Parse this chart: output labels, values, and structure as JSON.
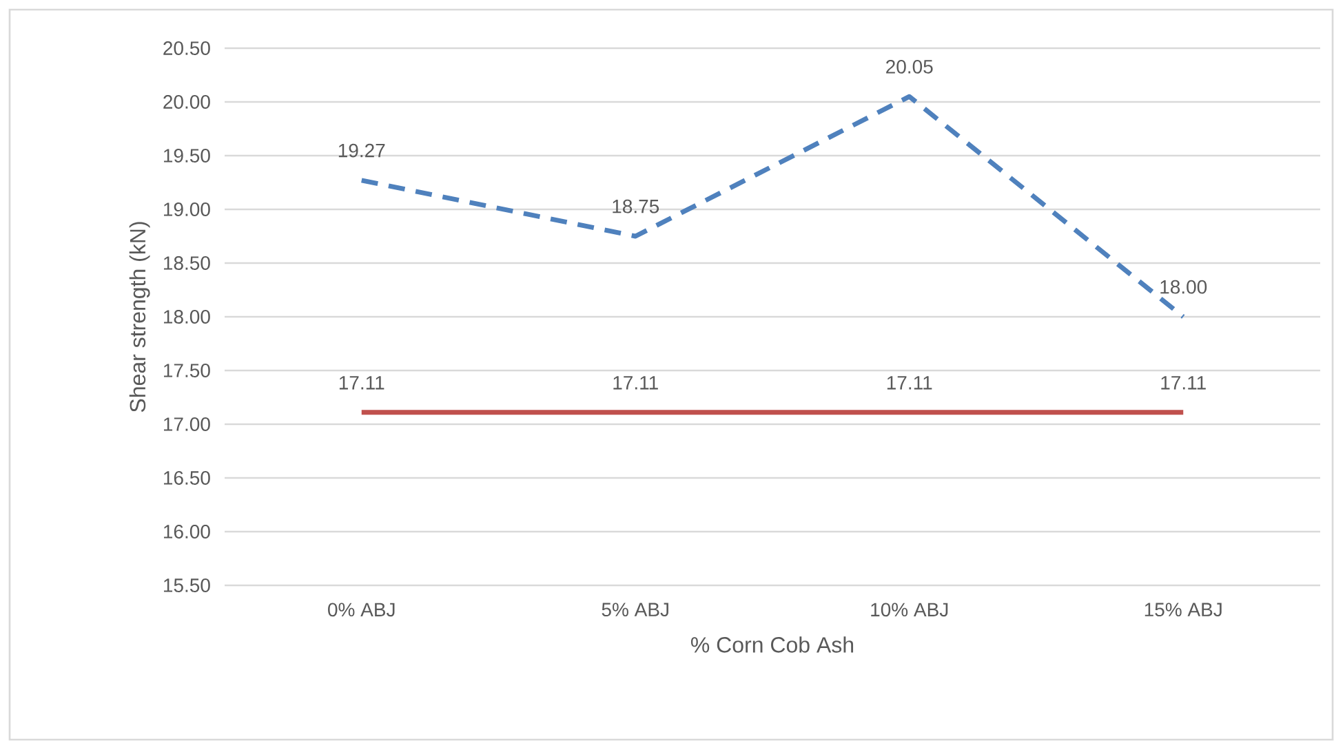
{
  "chart_data": {
    "type": "line",
    "xlabel": "% Corn Cob Ash",
    "ylabel": "Shear strength (kN)",
    "categories": [
      "0% ABJ",
      "5% ABJ",
      "10% ABJ",
      "15% ABJ"
    ],
    "series": [
      {
        "color": "#4f81bd",
        "line_style": "dashed",
        "values": [
          19.27,
          18.75,
          20.05,
          18.0
        ],
        "value_labels": [
          "19.27",
          "18.75",
          "20.05",
          "18.00"
        ]
      },
      {
        "color": "#c0504d",
        "line_style": "solid",
        "values": [
          17.11,
          17.11,
          17.11,
          17.11
        ],
        "value_labels": [
          "17.11",
          "17.11",
          "17.11",
          "17.11"
        ]
      }
    ],
    "ylim": [
      15.5,
      20.5
    ],
    "yticks": [
      {
        "value": 15.5,
        "label": "15.50"
      },
      {
        "value": 16,
        "label": "16.00"
      },
      {
        "value": 16.5,
        "label": "16.50"
      },
      {
        "value": 17,
        "label": "17.00"
      },
      {
        "value": 17.5,
        "label": "17.50"
      },
      {
        "value": 18,
        "label": "18.00"
      },
      {
        "value": 18.5,
        "label": "18.50"
      },
      {
        "value": 19,
        "label": "19.00"
      },
      {
        "value": 19.5,
        "label": "19.50"
      },
      {
        "value": 20,
        "label": "20.00"
      },
      {
        "value": 20.5,
        "label": "20.50"
      }
    ],
    "grid": "y",
    "marker": "none"
  }
}
